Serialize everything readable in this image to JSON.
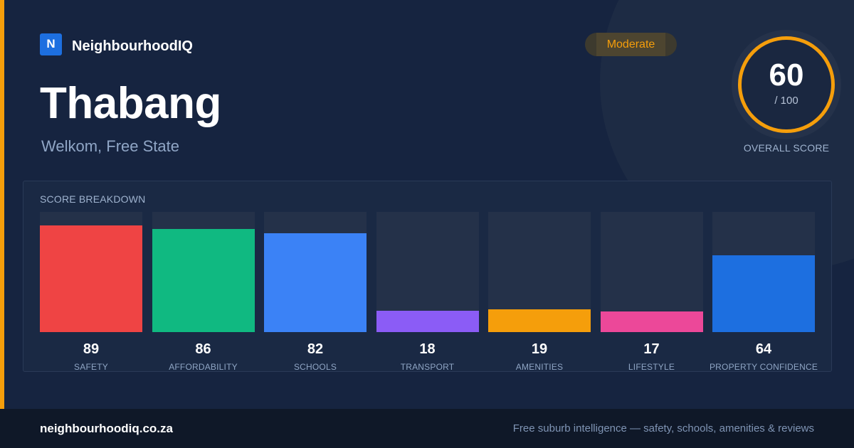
{
  "brand": {
    "logo_letter": "N",
    "name": "NeighbourhoodIQ"
  },
  "suburb": "Thabang",
  "region": "Welkom, Free State",
  "rating_badge": "Moderate",
  "overall": {
    "value": "60",
    "max": "/ 100",
    "label": "OVERALL SCORE",
    "fraction": 0.6
  },
  "breakdown": {
    "title": "SCORE BREAKDOWN",
    "bars": [
      {
        "label": "SAFETY",
        "value": "89",
        "score": 89,
        "color": "#ef4444"
      },
      {
        "label": "AFFORDABILITY",
        "value": "86",
        "score": 86,
        "color": "#10b981"
      },
      {
        "label": "SCHOOLS",
        "value": "82",
        "score": 82,
        "color": "#3b82f6"
      },
      {
        "label": "TRANSPORT",
        "value": "18",
        "score": 18,
        "color": "#8b5cf6"
      },
      {
        "label": "AMENITIES",
        "value": "19",
        "score": 19,
        "color": "#f59e0b"
      },
      {
        "label": "LIFESTYLE",
        "value": "17",
        "score": 17,
        "color": "#ec4899"
      },
      {
        "label": "PROPERTY CONFIDENCE",
        "value": "64",
        "score": 64,
        "color": "#1d6fe0"
      }
    ]
  },
  "footer": {
    "url": "neighbourhoodiq.co.za",
    "tagline": "Free suburb intelligence — safety, schools, amenities & reviews"
  },
  "colors": {
    "accent": "#f59e0b",
    "background": "#162440",
    "footer": "#0f1828"
  }
}
